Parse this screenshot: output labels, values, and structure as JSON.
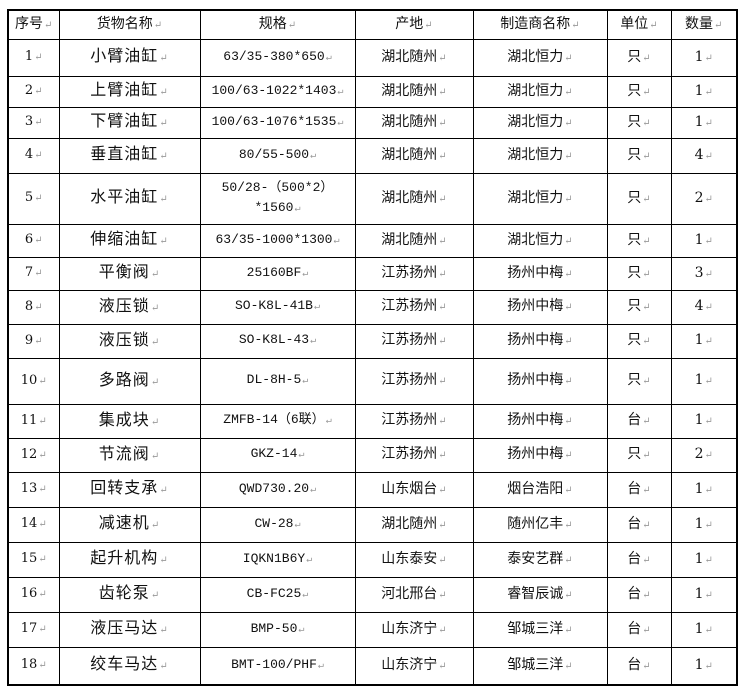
{
  "table": {
    "headers": [
      "序号",
      "货物名称",
      "规格",
      "产地",
      "制造商名称",
      "单位",
      "数量"
    ],
    "rows": [
      [
        "1",
        "小臂油缸",
        "63/35-380*650",
        "湖北随州",
        "湖北恒力",
        "只",
        "1"
      ],
      [
        "2",
        "上臂油缸",
        "100/63-1022*1403",
        "湖北随州",
        "湖北恒力",
        "只",
        "1"
      ],
      [
        "3",
        "下臂油缸",
        "100/63-1076*1535",
        "湖北随州",
        "湖北恒力",
        "只",
        "1"
      ],
      [
        "4",
        "垂直油缸",
        "80/55-500",
        "湖北随州",
        "湖北恒力",
        "只",
        "4"
      ],
      [
        "5",
        "水平油缸",
        "50/28-（500*2）*1560",
        "湖北随州",
        "湖北恒力",
        "只",
        "2"
      ],
      [
        "6",
        "伸缩油缸",
        "63/35-1000*1300",
        "湖北随州",
        "湖北恒力",
        "只",
        "1"
      ],
      [
        "7",
        "平衡阀",
        "25160BF",
        "江苏扬州",
        "扬州中梅",
        "只",
        "3"
      ],
      [
        "8",
        "液压锁",
        "SO-K8L-41B",
        "江苏扬州",
        "扬州中梅",
        "只",
        "4"
      ],
      [
        "9",
        "液压锁",
        "SO-K8L-43",
        "江苏扬州",
        "扬州中梅",
        "只",
        "1"
      ],
      [
        "10",
        "多路阀",
        "DL-8H-5",
        "江苏扬州",
        "扬州中梅",
        "只",
        "1"
      ],
      [
        "11",
        "集成块",
        "ZMFB-14（6联）",
        "江苏扬州",
        "扬州中梅",
        "台",
        "1"
      ],
      [
        "12",
        "节流阀",
        "GKZ-14",
        "江苏扬州",
        "扬州中梅",
        "只",
        "2"
      ],
      [
        "13",
        "回转支承",
        "QWD730.20",
        "山东烟台",
        "烟台浩阳",
        "台",
        "1"
      ],
      [
        "14",
        "减速机",
        "CW-28",
        "湖北随州",
        "随州亿丰",
        "台",
        "1"
      ],
      [
        "15",
        "起升机构",
        "IQKN1B6Y",
        "山东泰安",
        "泰安艺群",
        "台",
        "1"
      ],
      [
        "16",
        "齿轮泵",
        "CB-FC25",
        "河北邢台",
        "睿智辰诚",
        "台",
        "1"
      ],
      [
        "17",
        "液压马达",
        "BMP-50",
        "山东济宁",
        "邹城三洋",
        "台",
        "1"
      ],
      [
        "18",
        "绞车马达",
        "BMT-100/PHF",
        "山东济宁",
        "邹城三洋",
        "台",
        "1"
      ]
    ]
  }
}
